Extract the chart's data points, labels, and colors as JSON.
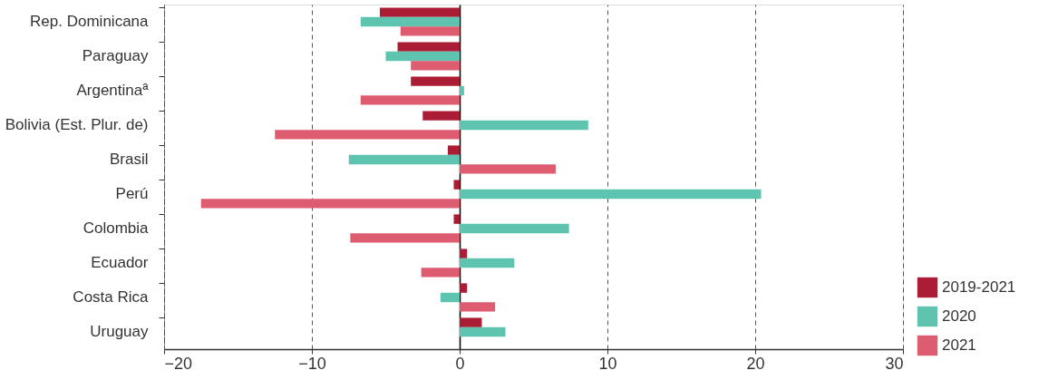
{
  "chart_data": {
    "type": "bar",
    "orientation": "horizontal",
    "categories": [
      "Rep. Dominicana",
      "Paraguay",
      "Argentinaª",
      "Bolivia (Est. Plur. de)",
      "Brasil",
      "Perú",
      "Colombia",
      "Ecuador",
      "Costa Rica",
      "Uruguay"
    ],
    "series": [
      {
        "name": "2019-2021",
        "color": "#ab1c35",
        "values": [
          -5.4,
          -4.2,
          -3.3,
          -2.5,
          -0.8,
          -0.4,
          -0.4,
          0.5,
          0.5,
          1.5
        ]
      },
      {
        "name": "2020",
        "color": "#5ec4b0",
        "values": [
          -6.7,
          -5.0,
          0.3,
          8.7,
          -7.5,
          20.4,
          7.4,
          3.7,
          -1.3,
          3.1
        ]
      },
      {
        "name": "2021",
        "color": "#de5c70",
        "values": [
          -4.0,
          -3.3,
          -6.7,
          -12.5,
          6.5,
          -17.5,
          -7.4,
          -2.6,
          2.4,
          null
        ]
      }
    ],
    "xlim": [
      -20,
      30
    ],
    "xticks": [
      -20,
      -10,
      0,
      10,
      20,
      30
    ],
    "grid": "x",
    "legend": "bottom right"
  }
}
